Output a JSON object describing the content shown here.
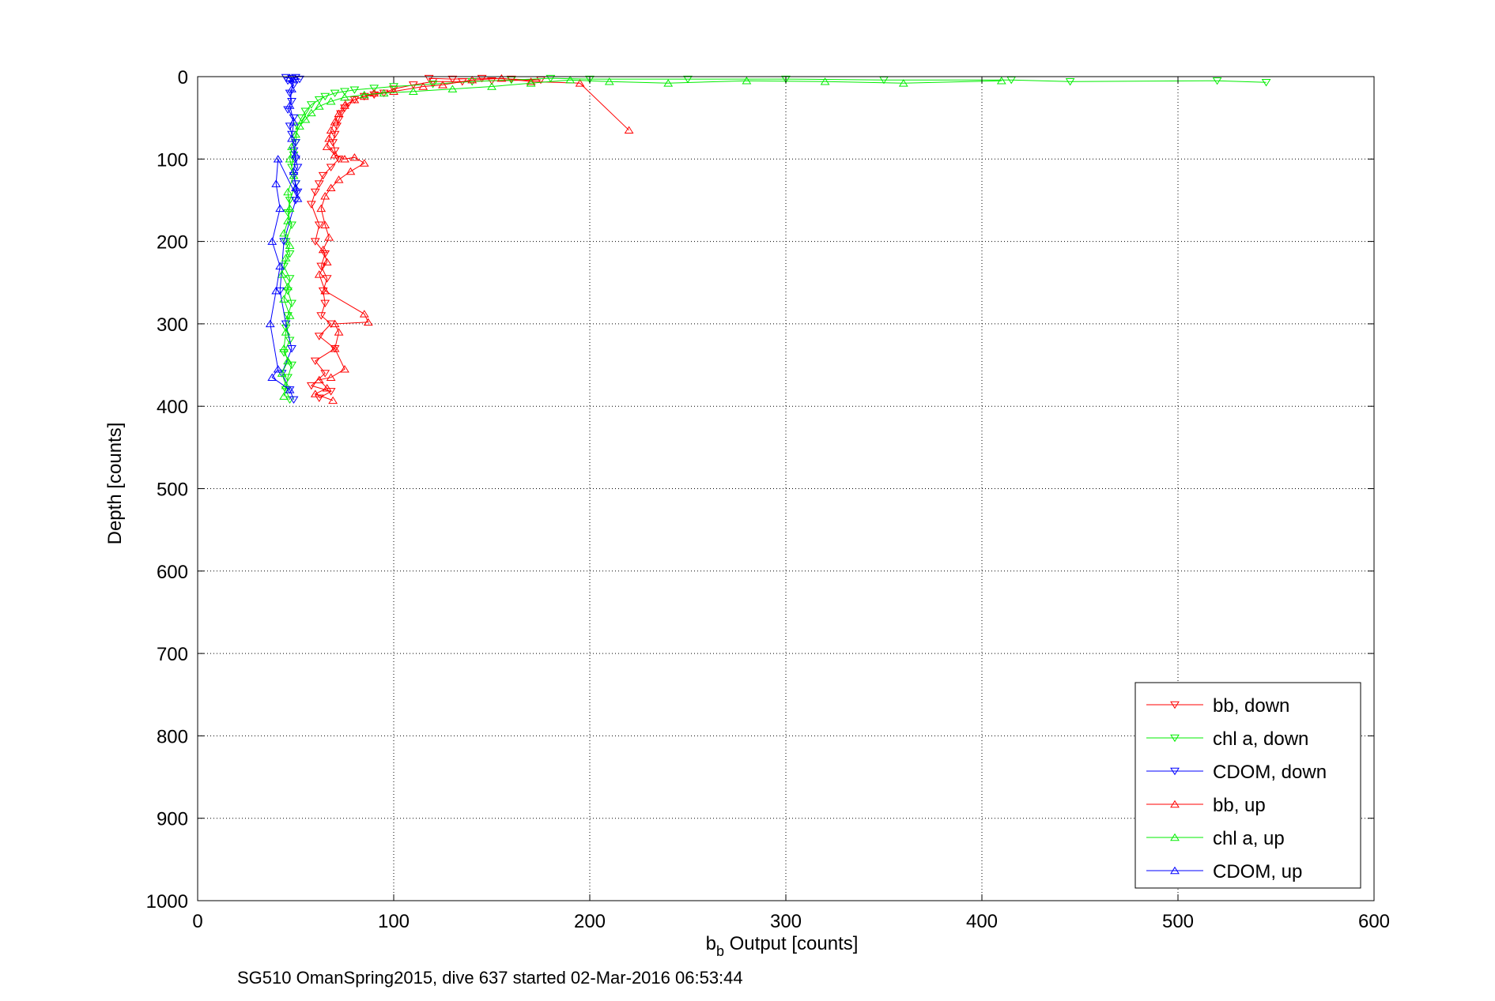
{
  "chart_data": {
    "type": "scatter",
    "title": "",
    "xlabel_main": "b",
    "xlabel_sub": "b",
    "xlabel_rest": " Output [counts]",
    "ylabel": "Depth [counts]",
    "caption": "SG510 OmanSpring2015, dive 637 started 02-Mar-2016 06:53:44",
    "xlim": [
      0,
      600
    ],
    "ylim": [
      0,
      1000
    ],
    "y_reversed": true,
    "xticks": [
      0,
      100,
      200,
      300,
      400,
      500,
      600
    ],
    "yticks": [
      0,
      100,
      200,
      300,
      400,
      500,
      600,
      700,
      800,
      900,
      1000
    ],
    "grid": true,
    "legend_position": "bottom-right",
    "series": [
      {
        "name": "bb, down",
        "color": "#ff0000",
        "marker": "triangle-down",
        "points": [
          [
            118,
            2
          ],
          [
            130,
            3
          ],
          [
            145,
            2
          ],
          [
            160,
            3
          ],
          [
            175,
            4
          ],
          [
            150,
            5
          ],
          [
            135,
            6
          ],
          [
            120,
            6
          ],
          [
            110,
            10
          ],
          [
            100,
            15
          ],
          [
            95,
            20
          ],
          [
            90,
            22
          ],
          [
            85,
            24
          ],
          [
            80,
            28
          ],
          [
            77,
            32
          ],
          [
            75,
            38
          ],
          [
            73,
            45
          ],
          [
            72,
            52
          ],
          [
            71,
            60
          ],
          [
            70,
            70
          ],
          [
            69,
            80
          ],
          [
            70,
            90
          ],
          [
            72,
            100
          ],
          [
            68,
            110
          ],
          [
            64,
            120
          ],
          [
            62,
            130
          ],
          [
            60,
            140
          ],
          [
            58,
            155
          ],
          [
            62,
            180
          ],
          [
            60,
            200
          ],
          [
            65,
            215
          ],
          [
            63,
            230
          ],
          [
            66,
            245
          ],
          [
            64,
            260
          ],
          [
            65,
            275
          ],
          [
            63,
            290
          ],
          [
            68,
            300
          ],
          [
            62,
            315
          ],
          [
            70,
            330
          ],
          [
            60,
            345
          ],
          [
            65,
            360
          ],
          [
            58,
            375
          ],
          [
            68,
            382
          ],
          [
            62,
            390
          ]
        ]
      },
      {
        "name": "chl a, down",
        "color": "#00ee00",
        "marker": "triangle-down",
        "points": [
          [
            545,
            7
          ],
          [
            520,
            5
          ],
          [
            445,
            6
          ],
          [
            415,
            4
          ],
          [
            350,
            4
          ],
          [
            300,
            3
          ],
          [
            250,
            3
          ],
          [
            200,
            3
          ],
          [
            180,
            2
          ],
          [
            160,
            4
          ],
          [
            140,
            6
          ],
          [
            120,
            9
          ],
          [
            100,
            12
          ],
          [
            90,
            14
          ],
          [
            80,
            16
          ],
          [
            75,
            18
          ],
          [
            70,
            20
          ],
          [
            65,
            24
          ],
          [
            62,
            28
          ],
          [
            58,
            34
          ],
          [
            55,
            42
          ],
          [
            53,
            50
          ],
          [
            51,
            60
          ],
          [
            50,
            80
          ],
          [
            49,
            95
          ],
          [
            48,
            110
          ],
          [
            50,
            130
          ],
          [
            47,
            150
          ],
          [
            46,
            165
          ],
          [
            48,
            180
          ],
          [
            45,
            200
          ],
          [
            47,
            215
          ],
          [
            44,
            230
          ],
          [
            47,
            245
          ],
          [
            46,
            260
          ],
          [
            48,
            275
          ],
          [
            46,
            290
          ],
          [
            45,
            305
          ],
          [
            47,
            320
          ],
          [
            44,
            335
          ],
          [
            48,
            350
          ],
          [
            46,
            365
          ],
          [
            45,
            380
          ],
          [
            47,
            392
          ]
        ]
      },
      {
        "name": "CDOM, down",
        "color": "#0000ff",
        "marker": "triangle-down",
        "points": [
          [
            45,
            1
          ],
          [
            48,
            2
          ],
          [
            50,
            1
          ],
          [
            52,
            3
          ],
          [
            46,
            5
          ],
          [
            49,
            10
          ],
          [
            47,
            20
          ],
          [
            48,
            30
          ],
          [
            46,
            40
          ],
          [
            49,
            50
          ],
          [
            47,
            60
          ],
          [
            48,
            70
          ],
          [
            50,
            80
          ],
          [
            49,
            90
          ],
          [
            50,
            100
          ],
          [
            51,
            110
          ],
          [
            49,
            120
          ],
          [
            50,
            130
          ],
          [
            51,
            140
          ],
          [
            50,
            150
          ],
          [
            44,
            200
          ],
          [
            42,
            260
          ],
          [
            45,
            300
          ],
          [
            48,
            330
          ],
          [
            43,
            360
          ],
          [
            47,
            380
          ],
          [
            49,
            392
          ]
        ]
      },
      {
        "name": "bb, up",
        "color": "#ff0000",
        "marker": "triangle-up",
        "points": [
          [
            220,
            65
          ],
          [
            195,
            8
          ],
          [
            170,
            6
          ],
          [
            155,
            2
          ],
          [
            140,
            4
          ],
          [
            125,
            10
          ],
          [
            115,
            12
          ],
          [
            100,
            18
          ],
          [
            90,
            20
          ],
          [
            85,
            24
          ],
          [
            80,
            28
          ],
          [
            75,
            35
          ],
          [
            72,
            45
          ],
          [
            70,
            55
          ],
          [
            68,
            65
          ],
          [
            67,
            75
          ],
          [
            66,
            85
          ],
          [
            70,
            95
          ],
          [
            75,
            100
          ],
          [
            80,
            98
          ],
          [
            85,
            105
          ],
          [
            78,
            115
          ],
          [
            72,
            125
          ],
          [
            68,
            135
          ],
          [
            65,
            145
          ],
          [
            63,
            160
          ],
          [
            65,
            180
          ],
          [
            67,
            195
          ],
          [
            64,
            210
          ],
          [
            66,
            225
          ],
          [
            62,
            240
          ],
          [
            65,
            260
          ],
          [
            85,
            288
          ],
          [
            87,
            298
          ],
          [
            70,
            300
          ],
          [
            72,
            310
          ],
          [
            70,
            330
          ],
          [
            75,
            355
          ],
          [
            68,
            365
          ],
          [
            62,
            368
          ],
          [
            66,
            378
          ],
          [
            60,
            385
          ],
          [
            69,
            393
          ]
        ]
      },
      {
        "name": "chl a, up",
        "color": "#00ee00",
        "marker": "triangle-up",
        "points": [
          [
            410,
            5
          ],
          [
            360,
            8
          ],
          [
            320,
            6
          ],
          [
            280,
            5
          ],
          [
            240,
            8
          ],
          [
            210,
            6
          ],
          [
            190,
            4
          ],
          [
            170,
            8
          ],
          [
            150,
            12
          ],
          [
            130,
            15
          ],
          [
            110,
            18
          ],
          [
            95,
            20
          ],
          [
            85,
            22
          ],
          [
            75,
            25
          ],
          [
            68,
            30
          ],
          [
            62,
            36
          ],
          [
            58,
            44
          ],
          [
            55,
            52
          ],
          [
            52,
            60
          ],
          [
            50,
            70
          ],
          [
            48,
            85
          ],
          [
            47,
            100
          ],
          [
            49,
            120
          ],
          [
            46,
            140
          ],
          [
            47,
            160
          ],
          [
            46,
            175
          ],
          [
            44,
            190
          ],
          [
            47,
            205
          ],
          [
            45,
            220
          ],
          [
            43,
            240
          ],
          [
            46,
            255
          ],
          [
            44,
            270
          ],
          [
            47,
            290
          ],
          [
            45,
            310
          ],
          [
            44,
            330
          ],
          [
            46,
            345
          ],
          [
            43,
            360
          ],
          [
            45,
            375
          ],
          [
            44,
            388
          ]
        ]
      },
      {
        "name": "CDOM, up",
        "color": "#0000ff",
        "marker": "triangle-up",
        "points": [
          [
            47,
            2
          ],
          [
            49,
            4
          ],
          [
            48,
            15
          ],
          [
            47,
            35
          ],
          [
            49,
            55
          ],
          [
            48,
            75
          ],
          [
            50,
            95
          ],
          [
            49,
            115
          ],
          [
            50,
            135
          ],
          [
            51,
            148
          ],
          [
            41,
            100
          ],
          [
            40,
            130
          ],
          [
            42,
            160
          ],
          [
            38,
            200
          ],
          [
            42,
            230
          ],
          [
            40,
            260
          ],
          [
            37,
            300
          ],
          [
            41,
            355
          ],
          [
            38,
            365
          ],
          [
            47,
            380
          ]
        ]
      }
    ]
  }
}
